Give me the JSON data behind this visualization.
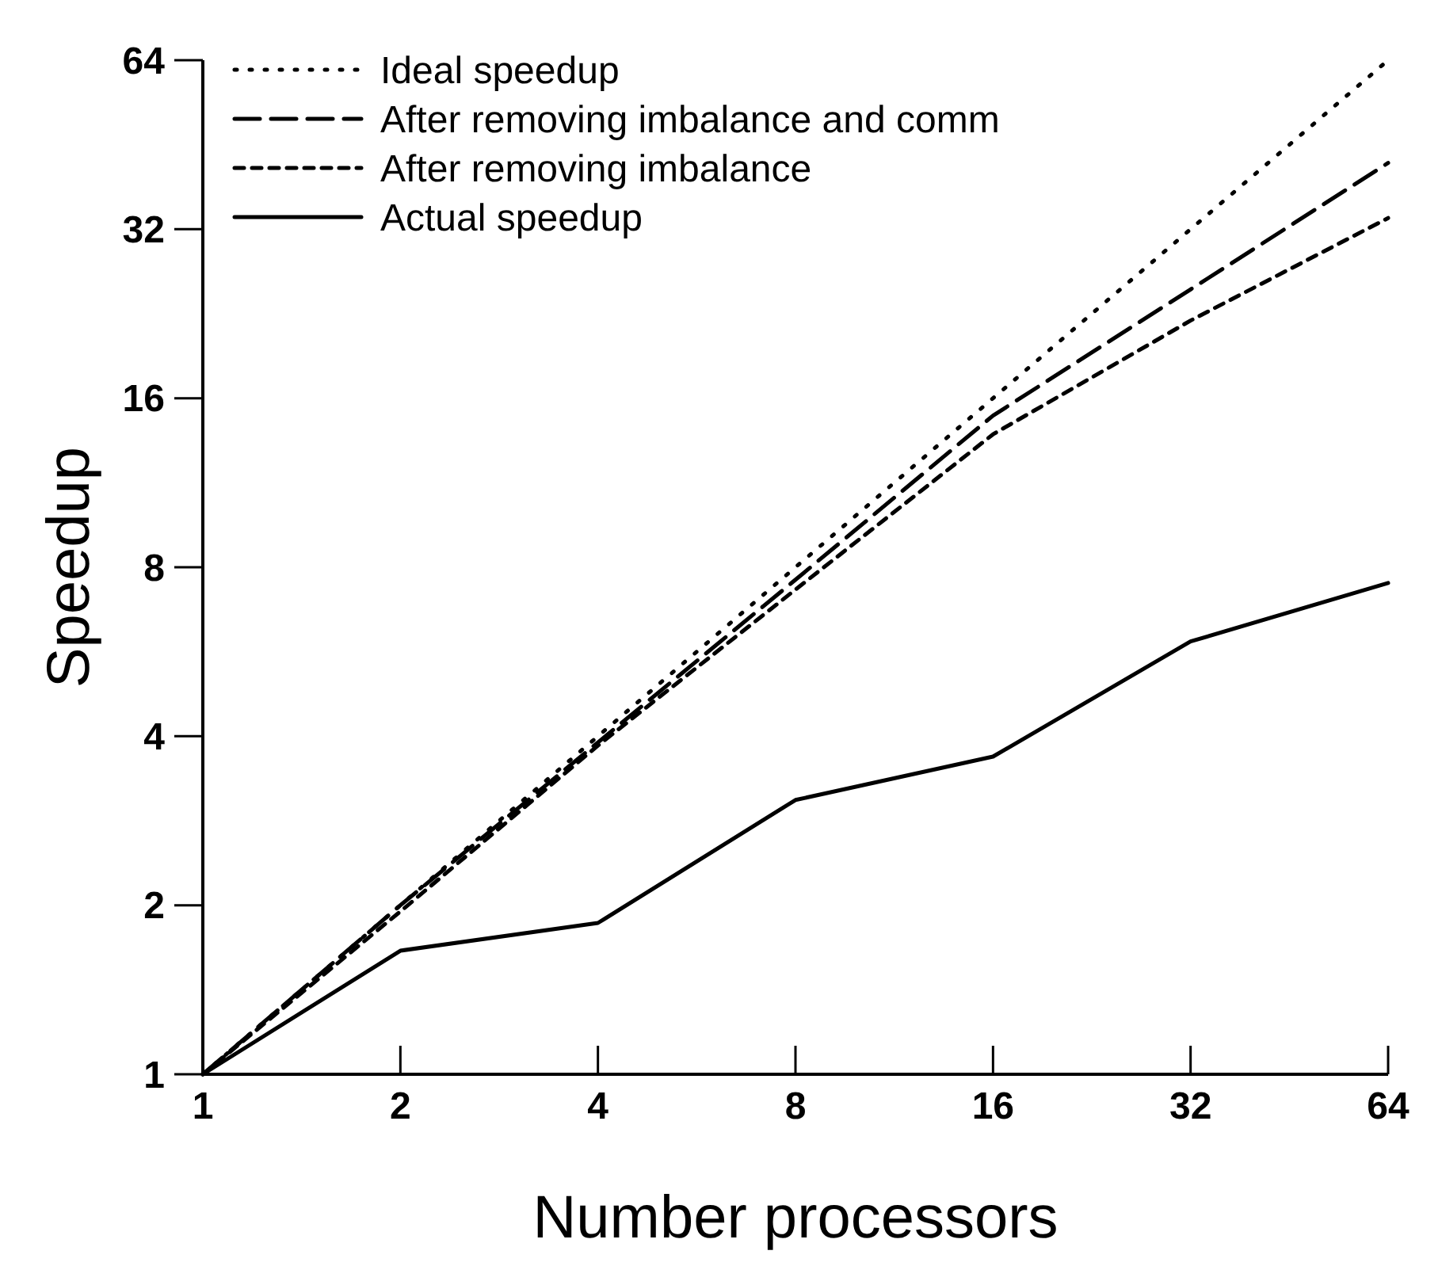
{
  "chart_data": {
    "type": "line",
    "xlabel": "Number processors",
    "ylabel": "Speedup",
    "log": "xy",
    "x": [
      1,
      2,
      4,
      8,
      16,
      32,
      64
    ],
    "xlim": [
      1,
      64
    ],
    "xticks": [
      1,
      2,
      4,
      8,
      16,
      32,
      64
    ],
    "ylim": [
      1,
      64
    ],
    "yticks": [
      1,
      2,
      4,
      8,
      16,
      32,
      64
    ],
    "grid": false,
    "legend": "top left",
    "marker": "none",
    "series": [
      {
        "name": "Ideal speedup",
        "color": "#000000",
        "line_style": "dotted",
        "values": [
          1,
          2,
          4,
          8,
          16,
          32,
          64
        ]
      },
      {
        "name": "After removing imbalance and comm",
        "color": "#000000",
        "line_style": "dashed",
        "values": [
          1,
          2,
          3.9,
          7.6,
          14.9,
          25,
          42
        ]
      },
      {
        "name": "After removing imbalance",
        "color": "#000000",
        "line_style": "short-dashed",
        "values": [
          1,
          1.95,
          3.85,
          7.3,
          13.8,
          22,
          33.5
        ]
      },
      {
        "name": "Actual speedup",
        "color": "#000000",
        "line_style": "solid",
        "values": [
          1,
          1.66,
          1.86,
          3.08,
          3.68,
          5.9,
          7.5
        ]
      }
    ]
  }
}
